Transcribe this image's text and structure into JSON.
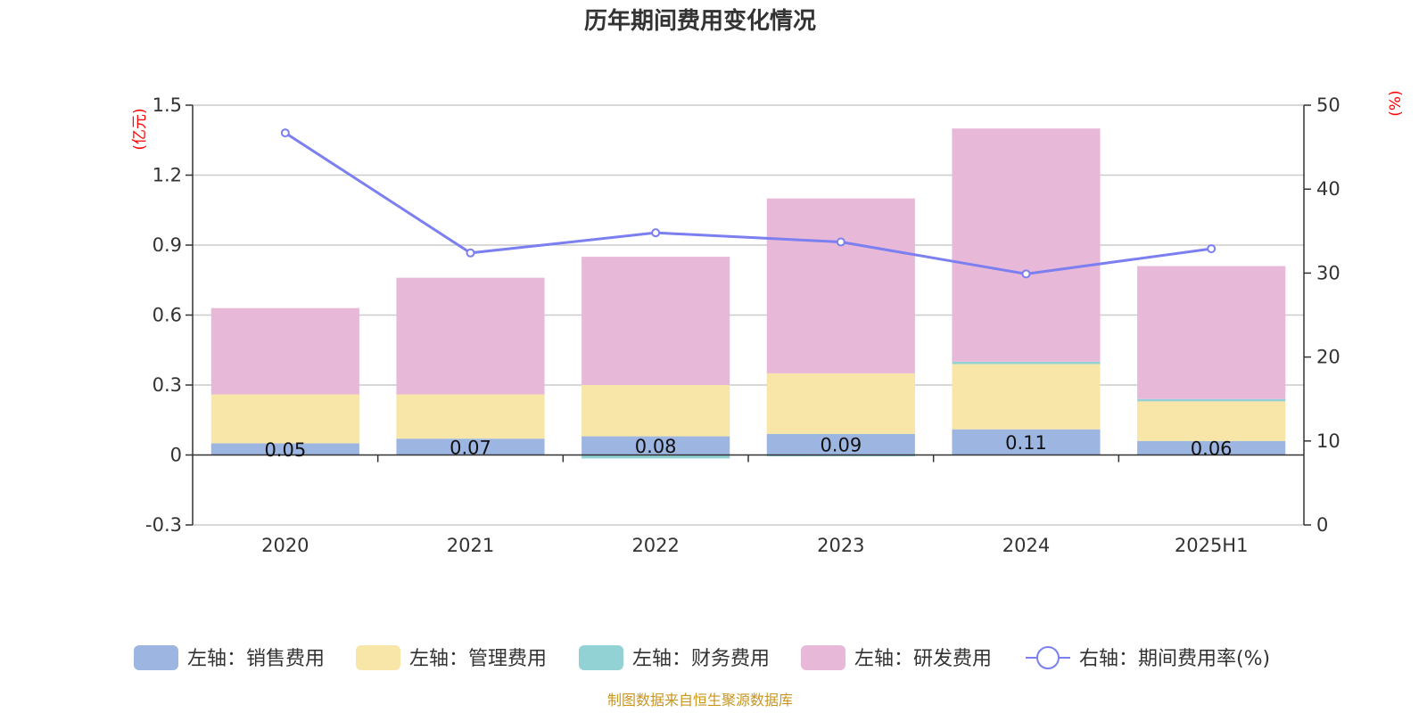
{
  "chart_data": {
    "type": "bar",
    "stacked": true,
    "title": "历年期间费用变化情况",
    "categories": [
      "2020",
      "2021",
      "2022",
      "2023",
      "2024",
      "2025H1"
    ],
    "left_axis": {
      "unit_label": "(亿元)",
      "ylim": [
        -0.3,
        1.5
      ],
      "ticks": [
        "1.5",
        "1.2",
        "0.9",
        "0.6",
        "0.3",
        "0",
        "-0.3"
      ]
    },
    "right_axis": {
      "unit_label": "(%)",
      "ylim": [
        0,
        50
      ],
      "ticks": [
        "50",
        "40",
        "30",
        "20",
        "10",
        "0"
      ]
    },
    "series": [
      {
        "name": "左轴：销售费用",
        "axis": "left",
        "color": "#9db5e1",
        "values": [
          0.05,
          0.07,
          0.08,
          0.09,
          0.11,
          0.06
        ],
        "data_labels": [
          "0.05",
          "0.07",
          "0.08",
          "0.09",
          "0.11",
          "0.06"
        ]
      },
      {
        "name": "左轴：管理费用",
        "axis": "left",
        "color": "#f7e6a7",
        "values": [
          0.21,
          0.19,
          0.22,
          0.26,
          0.28,
          0.17
        ]
      },
      {
        "name": "左轴：财务费用",
        "axis": "left",
        "color": "#93d2d4",
        "values": [
          0.0,
          0.0,
          -0.015,
          -0.006,
          0.01,
          0.01
        ]
      },
      {
        "name": "左轴：研发费用",
        "axis": "left",
        "color": "#e8b8d9",
        "values": [
          0.37,
          0.5,
          0.55,
          0.75,
          1.0,
          0.57
        ]
      },
      {
        "name": "右轴：期间费用率(%)",
        "axis": "right",
        "type": "line",
        "color": "#7b7ff0",
        "values": [
          46.7,
          32.4,
          34.8,
          33.7,
          29.9,
          32.9
        ]
      }
    ],
    "grid": true,
    "legend_position": "bottom"
  },
  "source_note": "制图数据来自恒生聚源数据库"
}
